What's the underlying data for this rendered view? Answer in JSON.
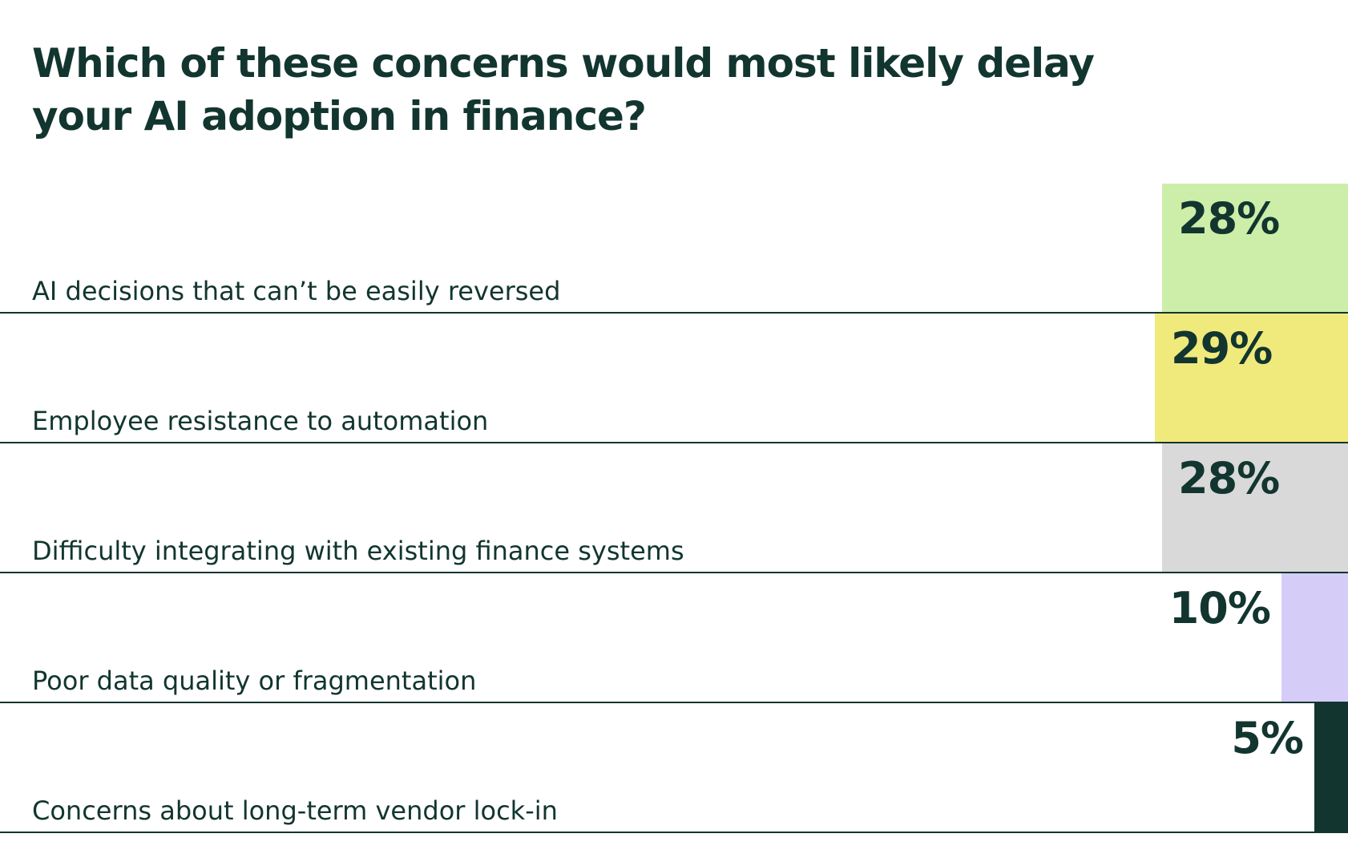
{
  "chart_data": {
    "type": "bar",
    "orientation": "horizontal",
    "title": "Which of these concerns would most likely delay your AI adoption in finance?",
    "categories": [
      "AI decisions that can’t be easily reversed",
      "Employee resistance to automation",
      "Difficulty integrating with existing finance systems",
      "Poor data quality or fragmentation",
      "Concerns about long-term vendor lock-in"
    ],
    "values": [
      28,
      29,
      28,
      10,
      5
    ],
    "value_labels": [
      "28%",
      "29%",
      "28%",
      "10%",
      "5%"
    ],
    "bar_colors": [
      "#cdeea9",
      "#f0e97c",
      "#d9d9d9",
      "#d5cdf7",
      "#12352f"
    ],
    "text_color": "#12352f",
    "line_color": "#12352f",
    "xlabel": "",
    "ylabel": "",
    "grid": false,
    "legend": "none"
  }
}
